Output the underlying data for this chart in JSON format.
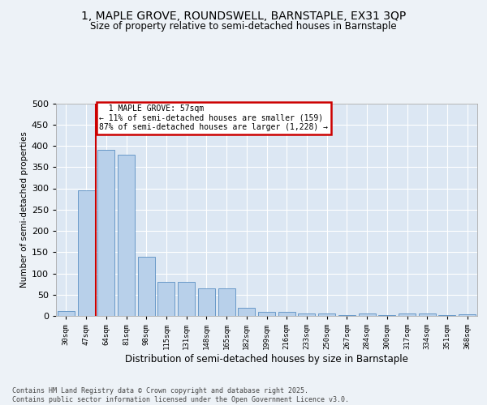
{
  "title1": "1, MAPLE GROVE, ROUNDSWELL, BARNSTAPLE, EX31 3QP",
  "title2": "Size of property relative to semi-detached houses in Barnstaple",
  "xlabel": "Distribution of semi-detached houses by size in Barnstaple",
  "ylabel": "Number of semi-detached properties",
  "categories": [
    "30sqm",
    "47sqm",
    "64sqm",
    "81sqm",
    "98sqm",
    "115sqm",
    "131sqm",
    "148sqm",
    "165sqm",
    "182sqm",
    "199sqm",
    "216sqm",
    "233sqm",
    "250sqm",
    "267sqm",
    "284sqm",
    "300sqm",
    "317sqm",
    "334sqm",
    "351sqm",
    "368sqm"
  ],
  "values": [
    12,
    296,
    390,
    380,
    140,
    80,
    80,
    65,
    65,
    20,
    10,
    9,
    5,
    5,
    1,
    5,
    1,
    5,
    5,
    2,
    3
  ],
  "bar_color": "#b8d0ea",
  "bar_edge_color": "#5a8fc2",
  "property_line_x": 1.5,
  "property_size": "57sqm",
  "property_name": "1 MAPLE GROVE",
  "pct_smaller": 11,
  "pct_larger": 87,
  "count_smaller": 159,
  "count_larger": 1228,
  "annotation_box_color": "#cc0000",
  "vline_color": "#cc0000",
  "background_color": "#edf2f7",
  "plot_bg_color": "#dce7f3",
  "grid_color": "#ffffff",
  "footer": "Contains HM Land Registry data © Crown copyright and database right 2025.\nContains public sector information licensed under the Open Government Licence v3.0.",
  "ylim": [
    0,
    500
  ],
  "yticks": [
    0,
    50,
    100,
    150,
    200,
    250,
    300,
    350,
    400,
    450,
    500
  ]
}
